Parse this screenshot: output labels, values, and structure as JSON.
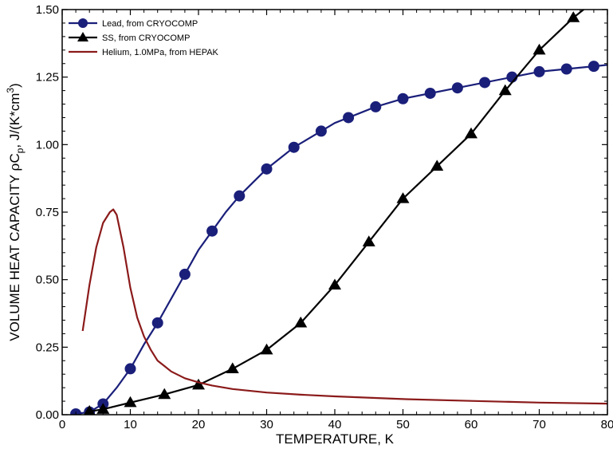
{
  "chart_data": {
    "type": "line",
    "title": "",
    "xlabel": "TEMPERATURE, K",
    "ylabel_parts": {
      "main": "VOLUME HEAT CAPACITY  ",
      "rho": "ρ",
      "c": "C",
      "sub": "p",
      "unit": ", J/(K*cm",
      "sup": "3",
      "close": ")"
    },
    "xlim": [
      0,
      80
    ],
    "ylim": [
      0,
      1.5
    ],
    "xticks": [
      0,
      10,
      20,
      30,
      40,
      50,
      60,
      70,
      80
    ],
    "yticks": [
      0,
      0.25,
      0.5,
      0.75,
      1.0,
      1.25,
      1.5
    ],
    "xtick_labels": [
      "0",
      "10",
      "20",
      "30",
      "40",
      "50",
      "60",
      "70",
      "80"
    ],
    "ytick_labels": [
      "0.00",
      "0.25",
      "0.50",
      "0.75",
      "1.00",
      "1.25",
      "1.50"
    ],
    "grid": false,
    "legend_position": "top-left",
    "series": [
      {
        "name": "Lead, from CRYOCOMP",
        "color": "#1a1f7a",
        "marker": "circle",
        "line": [
          [
            2,
            0.003
          ],
          [
            4,
            0.01
          ],
          [
            6,
            0.04
          ],
          [
            8,
            0.1
          ],
          [
            10,
            0.17
          ],
          [
            12,
            0.26
          ],
          [
            14,
            0.34
          ],
          [
            16,
            0.43
          ],
          [
            18,
            0.52
          ],
          [
            20,
            0.61
          ],
          [
            22,
            0.68
          ],
          [
            24,
            0.75
          ],
          [
            26,
            0.81
          ],
          [
            28,
            0.86
          ],
          [
            30,
            0.91
          ],
          [
            32,
            0.95
          ],
          [
            34,
            0.99
          ],
          [
            36,
            1.02
          ],
          [
            38,
            1.05
          ],
          [
            40,
            1.08
          ],
          [
            42,
            1.1
          ],
          [
            44,
            1.12
          ],
          [
            46,
            1.14
          ],
          [
            48,
            1.155
          ],
          [
            50,
            1.17
          ],
          [
            54,
            1.19
          ],
          [
            58,
            1.21
          ],
          [
            62,
            1.23
          ],
          [
            66,
            1.25
          ],
          [
            70,
            1.27
          ],
          [
            74,
            1.28
          ],
          [
            78,
            1.29
          ],
          [
            80,
            1.295
          ]
        ],
        "markers": [
          [
            2,
            0.003
          ],
          [
            4,
            0.01
          ],
          [
            6,
            0.04
          ],
          [
            10,
            0.17
          ],
          [
            14,
            0.34
          ],
          [
            18,
            0.52
          ],
          [
            22,
            0.68
          ],
          [
            26,
            0.81
          ],
          [
            30,
            0.91
          ],
          [
            34,
            0.99
          ],
          [
            38,
            1.05
          ],
          [
            42,
            1.1
          ],
          [
            46,
            1.14
          ],
          [
            50,
            1.17
          ],
          [
            54,
            1.19
          ],
          [
            58,
            1.21
          ],
          [
            62,
            1.23
          ],
          [
            66,
            1.25
          ],
          [
            70,
            1.27
          ],
          [
            74,
            1.28
          ],
          [
            78,
            1.29
          ]
        ]
      },
      {
        "name": "SS, from CRYOCOMP",
        "color": "#000000",
        "marker": "triangle",
        "line": [
          [
            4,
            0.012
          ],
          [
            6,
            0.02
          ],
          [
            10,
            0.045
          ],
          [
            15,
            0.075
          ],
          [
            20,
            0.11
          ],
          [
            25,
            0.17
          ],
          [
            30,
            0.24
          ],
          [
            35,
            0.34
          ],
          [
            40,
            0.48
          ],
          [
            45,
            0.64
          ],
          [
            50,
            0.8
          ],
          [
            55,
            0.92
          ],
          [
            60,
            1.04
          ],
          [
            65,
            1.2
          ],
          [
            70,
            1.35
          ],
          [
            75,
            1.47
          ],
          [
            78,
            1.53
          ]
        ],
        "markers": [
          [
            4,
            0.012
          ],
          [
            6,
            0.02
          ],
          [
            10,
            0.045
          ],
          [
            15,
            0.075
          ],
          [
            20,
            0.11
          ],
          [
            25,
            0.17
          ],
          [
            30,
            0.24
          ],
          [
            35,
            0.34
          ],
          [
            40,
            0.48
          ],
          [
            45,
            0.64
          ],
          [
            50,
            0.8
          ],
          [
            55,
            0.92
          ],
          [
            60,
            1.04
          ],
          [
            65,
            1.2
          ],
          [
            70,
            1.35
          ],
          [
            75,
            1.47
          ]
        ]
      },
      {
        "name": "Helium, 1.0MPa, from HEPAK",
        "color": "#8b1a1a",
        "marker": "none",
        "line": [
          [
            3,
            0.31
          ],
          [
            4,
            0.48
          ],
          [
            5,
            0.62
          ],
          [
            6,
            0.71
          ],
          [
            7,
            0.75
          ],
          [
            7.5,
            0.76
          ],
          [
            8,
            0.74
          ],
          [
            9,
            0.62
          ],
          [
            10,
            0.47
          ],
          [
            11,
            0.36
          ],
          [
            12,
            0.29
          ],
          [
            13,
            0.24
          ],
          [
            14,
            0.2
          ],
          [
            15,
            0.18
          ],
          [
            16,
            0.16
          ],
          [
            18,
            0.135
          ],
          [
            20,
            0.12
          ],
          [
            22,
            0.108
          ],
          [
            25,
            0.095
          ],
          [
            30,
            0.082
          ],
          [
            35,
            0.074
          ],
          [
            40,
            0.068
          ],
          [
            50,
            0.058
          ],
          [
            60,
            0.051
          ],
          [
            70,
            0.045
          ],
          [
            80,
            0.041
          ]
        ],
        "markers": []
      }
    ]
  }
}
